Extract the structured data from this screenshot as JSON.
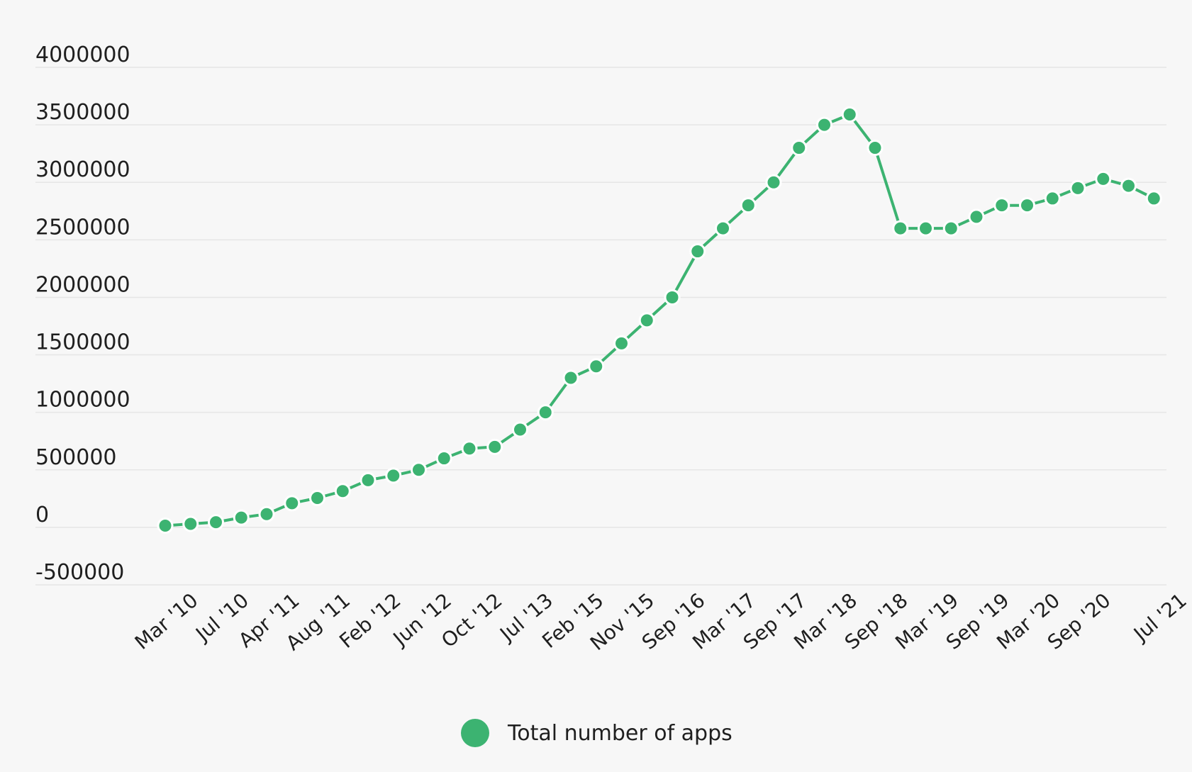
{
  "colors": {
    "series": "#3cb371"
  },
  "chart_data": {
    "type": "line",
    "y_ticks": [
      "-500000",
      "0",
      "500000",
      "1000000",
      "1500000",
      "2000000",
      "2500000",
      "3000000",
      "3500000",
      "4000000"
    ],
    "ylim": [
      -500000,
      4000000
    ],
    "grid": true,
    "legend_position": "bottom-center",
    "x_tick_labels": [
      "Mar '10",
      "Jul '10",
      "Apr '11",
      "Aug '11",
      "Feb '12",
      "Jun '12",
      "Oct '12",
      "Jul '13",
      "Feb '15",
      "Nov '15",
      "Sep '16",
      "Mar '17",
      "Sep '17",
      "Mar '18",
      "Sep '18",
      "Mar '19",
      "Sep '19",
      "Mar '20",
      "Sep '20",
      "Jul '21"
    ],
    "series": [
      {
        "name": "Total number of apps",
        "values": [
          15000,
          30000,
          45000,
          85000,
          115000,
          210000,
          255000,
          315000,
          410000,
          450000,
          500000,
          600000,
          685000,
          700000,
          850000,
          1000000,
          1300000,
          1400000,
          1600000,
          1800000,
          2000000,
          2400000,
          2600000,
          2800000,
          3000000,
          3300000,
          3500000,
          3590000,
          3300000,
          2600000,
          2600000,
          2600000,
          2700000,
          2800000,
          2800000,
          2860000,
          2950000,
          3030000,
          2970000,
          2860000
        ]
      }
    ]
  }
}
